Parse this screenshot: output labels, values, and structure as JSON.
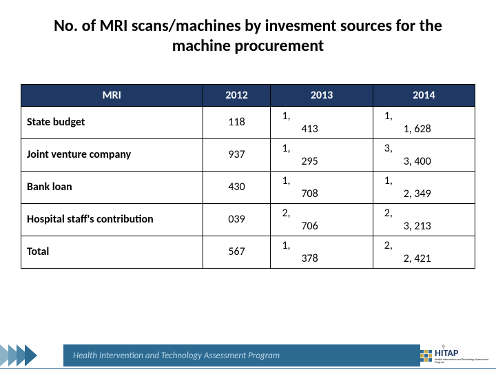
{
  "title": "No. of MRI scans/machines by invesment sources for the machine procurement",
  "title_fontsize": 24,
  "table": {
    "header_bg": "#1f3864",
    "header_text_color": "#ffffff",
    "border_color": "#000000",
    "col_widths_pct": [
      40,
      15,
      22.5,
      22.5
    ],
    "columns": [
      "MRI",
      "2012",
      "2013",
      "2014"
    ],
    "rows": [
      {
        "label": "State budget",
        "c2012": "118",
        "c2013": {
          "l1": "1,",
          "l2": "413"
        },
        "c2014": {
          "l1": "1,",
          "l2": "1, 628"
        }
      },
      {
        "label": "Joint venture company",
        "c2012": "937",
        "c2013": {
          "l1": "1,",
          "l2": "295"
        },
        "c2014": {
          "l1": "3,",
          "l2": "3, 400"
        }
      },
      {
        "label": "Bank loan",
        "c2012": "430",
        "c2013": {
          "l1": "1,",
          "l2": "708"
        },
        "c2014": {
          "l1": "1,",
          "l2": "2, 349"
        }
      },
      {
        "label": "Hospital staff's contribution",
        "c2012": "039",
        "c2013": {
          "l1": "2,",
          "l2": "706"
        },
        "c2014": {
          "l1": "2,",
          "l2": "3, 213"
        }
      },
      {
        "label": "Total",
        "c2012": "567",
        "c2013": {
          "l1": "1,",
          "l2": "378"
        },
        "c2014": {
          "l1": "2,",
          "l2": "2, 421"
        }
      }
    ],
    "row_fontsize": 16,
    "header_fontsize": 16
  },
  "footer": {
    "bar_bg": "#2c6a92",
    "bar_text": "Health Intervention and Technology Assessment Program",
    "bar_text_color": "#b9d4e4",
    "chevron_colors": [
      "#8db3c8",
      "#6a9bb8",
      "#4a84a6",
      "#2c6a92"
    ],
    "logo_text": "HITAP",
    "logo_text_color": "#1f3864",
    "logo_sub": "Health Intervention and Technology Assessment Program",
    "logo_dot_colors": {
      "blue": "#2c6a92",
      "gold": "#c9a94a"
    },
    "rule_color": "#2c6a92"
  },
  "slide_number": "9"
}
